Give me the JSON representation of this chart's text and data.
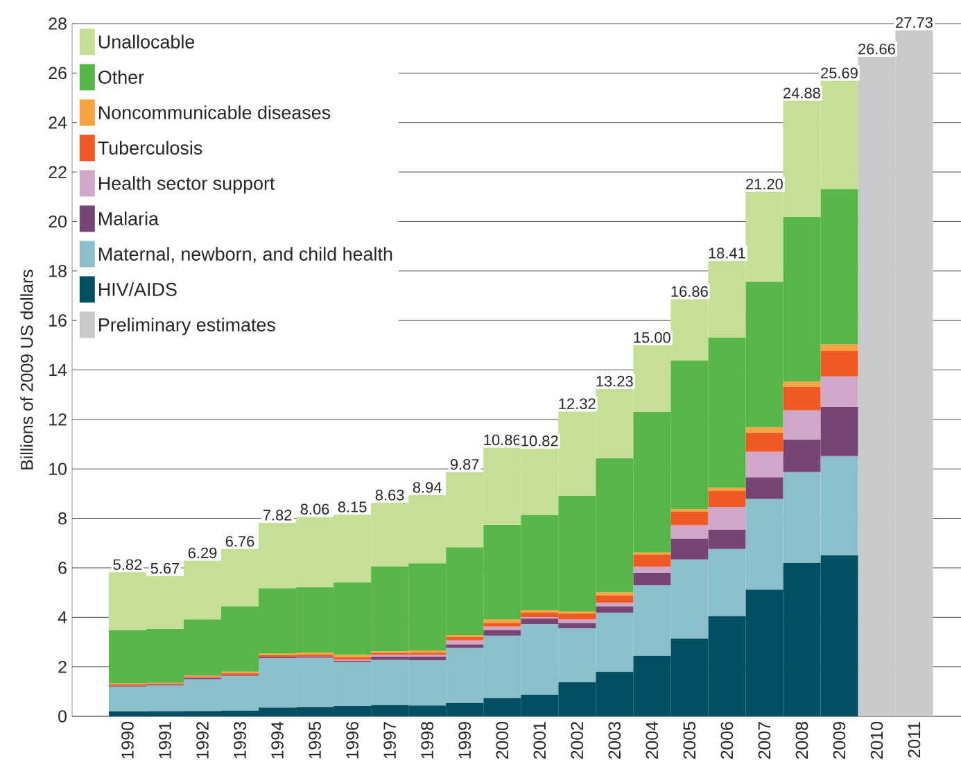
{
  "chart_data": {
    "type": "bar",
    "stacked": true,
    "ylabel": "Billions of 2009 US dollars",
    "categories": [
      "1990",
      "1991",
      "1992",
      "1993",
      "1994",
      "1995",
      "1996",
      "1997",
      "1998",
      "1999",
      "2000",
      "2001",
      "2002",
      "2003",
      "2004",
      "2005",
      "2006",
      "2007",
      "2008",
      "2009",
      "2010",
      "2011"
    ],
    "series": [
      {
        "name": "Preliminary estimates",
        "color": "#c8c9cb",
        "values": [
          null,
          null,
          null,
          null,
          null,
          null,
          null,
          null,
          null,
          null,
          null,
          null,
          null,
          null,
          null,
          null,
          null,
          null,
          null,
          null,
          26.66,
          27.73
        ]
      },
      {
        "name": "HIV/AIDS",
        "color": "#004f63",
        "values": [
          0.2,
          0.21,
          0.22,
          0.24,
          0.36,
          0.38,
          0.42,
          0.46,
          0.44,
          0.55,
          0.74,
          0.88,
          1.39,
          1.81,
          2.45,
          3.14,
          4.06,
          5.12,
          6.21,
          6.52,
          null,
          null
        ]
      },
      {
        "name": "Maternal, newborn, and child health",
        "color": "#8bbfca",
        "values": [
          1.0,
          1.04,
          1.28,
          1.39,
          1.99,
          1.99,
          1.77,
          1.82,
          1.82,
          2.22,
          2.52,
          2.85,
          2.17,
          2.37,
          2.85,
          3.2,
          2.7,
          3.67,
          3.66,
          4.0,
          null,
          null
        ]
      },
      {
        "name": "Malaria",
        "color": "#774573",
        "values": [
          0.04,
          0.03,
          0.04,
          0.04,
          0.05,
          0.05,
          0.05,
          0.14,
          0.16,
          0.14,
          0.23,
          0.23,
          0.22,
          0.27,
          0.51,
          0.85,
          0.78,
          0.87,
          1.32,
          1.99,
          null,
          null
        ]
      },
      {
        "name": "Health sector support",
        "color": "#d0a7c9",
        "values": [
          null,
          null,
          0.03,
          null,
          null,
          null,
          0.05,
          0.07,
          0.07,
          0.16,
          0.14,
          0.05,
          0.14,
          0.14,
          0.24,
          0.53,
          0.92,
          1.03,
          1.18,
          1.23,
          null,
          null
        ]
      },
      {
        "name": "Tuberculosis",
        "color": "#ef5a24",
        "values": [
          0.05,
          0.04,
          0.05,
          0.08,
          0.08,
          0.08,
          0.1,
          0.08,
          0.08,
          0.14,
          0.15,
          0.19,
          0.23,
          0.29,
          0.48,
          0.55,
          0.65,
          0.78,
          0.95,
          1.03,
          null,
          null
        ]
      },
      {
        "name": "Noncommunicable diseases",
        "color": "#f9a440",
        "values": [
          0.04,
          0.03,
          0.03,
          0.05,
          0.06,
          0.07,
          0.1,
          0.06,
          0.09,
          0.07,
          0.14,
          0.09,
          0.09,
          0.13,
          0.09,
          0.1,
          0.13,
          0.21,
          0.21,
          0.27,
          null,
          null
        ]
      },
      {
        "name": "Other",
        "color": "#58b548",
        "values": [
          2.15,
          2.19,
          2.27,
          2.65,
          2.64,
          2.65,
          2.92,
          3.43,
          3.53,
          3.55,
          3.82,
          3.85,
          4.67,
          5.42,
          5.7,
          6.01,
          6.06,
          5.89,
          6.65,
          6.26,
          null,
          null
        ]
      },
      {
        "name": "Unallocable",
        "color": "#c5df96",
        "values": [
          2.34,
          2.13,
          2.37,
          2.31,
          2.64,
          2.84,
          2.74,
          2.57,
          2.75,
          3.04,
          3.12,
          2.68,
          3.41,
          2.8,
          2.68,
          2.48,
          3.11,
          3.63,
          4.7,
          4.39,
          null,
          null
        ]
      }
    ],
    "totals": [
      "5.82",
      "5.67",
      "6.29",
      "6.76",
      "7.82",
      "8.06",
      "8.15",
      "8.63",
      "8.94",
      "9.87",
      "10.86",
      "10.82",
      "12.32",
      "13.23",
      "15.00",
      "16.86",
      "18.41",
      "21.20",
      "24.88",
      "25.69",
      "26.66",
      "27.73"
    ],
    "ylim": [
      0,
      28
    ],
    "yticks": [
      0,
      2,
      4,
      6,
      8,
      10,
      12,
      14,
      16,
      18,
      20,
      22,
      24,
      26,
      28
    ],
    "grid": "y",
    "legend": "top left"
  }
}
